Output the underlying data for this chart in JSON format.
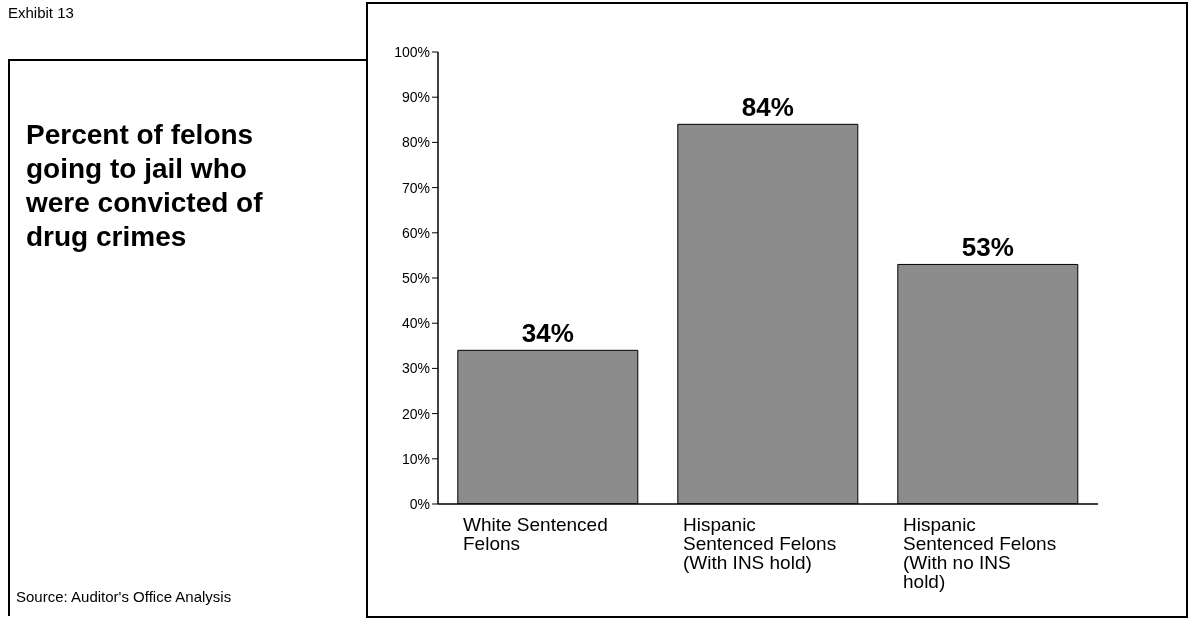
{
  "chart_data": {
    "type": "bar",
    "title": "Percent of felons going to jail who were convicted of drug crimes",
    "annotations": [
      "Exhibit 13",
      "Source: Auditor's Office Analysis"
    ],
    "categories": [
      "White Sentenced Felons",
      "Hispanic Sentenced Felons (With INS hold)",
      "Hispanic Sentenced Felons (With no INS hold)"
    ],
    "values": [
      34,
      84,
      53
    ],
    "value_labels": [
      "34%",
      "84%",
      "53%"
    ],
    "color": "#8c8c8c",
    "ylim": [
      0,
      100
    ],
    "yticks": [
      {
        "value": 0,
        "label": "0%"
      },
      {
        "value": 10,
        "label": "10%"
      },
      {
        "value": 20,
        "label": "20%"
      },
      {
        "value": 30,
        "label": "30%"
      },
      {
        "value": 40,
        "label": "40%"
      },
      {
        "value": 50,
        "label": "50%"
      },
      {
        "value": 60,
        "label": "60%"
      },
      {
        "value": 70,
        "label": "70%"
      },
      {
        "value": 80,
        "label": "80%"
      },
      {
        "value": 90,
        "label": "90%"
      },
      {
        "value": 100,
        "label": "100%"
      }
    ],
    "grid": false,
    "legend": false
  }
}
